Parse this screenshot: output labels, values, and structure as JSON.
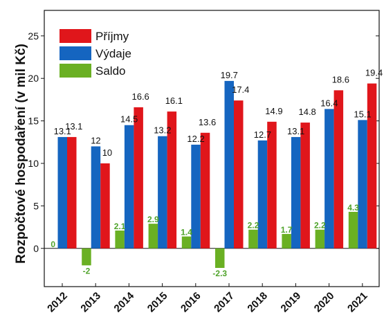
{
  "chart_data": {
    "type": "bar",
    "categories": [
      "2012",
      "2013",
      "2014",
      "2015",
      "2016",
      "2017",
      "2018",
      "2019",
      "2020",
      "2021"
    ],
    "series": [
      {
        "name": "Výdaje",
        "color": "#1565c0",
        "values": [
          13.1,
          12,
          14.5,
          13.2,
          12.2,
          19.7,
          12.7,
          13.1,
          16.4,
          15.1
        ]
      },
      {
        "name": "Příjmy",
        "color": "#e0161b",
        "values": [
          13.1,
          10,
          16.6,
          16.1,
          13.6,
          17.4,
          14.9,
          14.8,
          18.6,
          19.4
        ]
      },
      {
        "name": "Saldo",
        "color": "#6ab023",
        "values": [
          0,
          -2,
          2.1,
          2.9,
          1.4,
          -2.3,
          2.2,
          1.7,
          2.2,
          4.3
        ]
      }
    ],
    "legend_order": [
      "Příjmy",
      "Výdaje",
      "Saldo"
    ],
    "legend_position": "top-left",
    "ylabel": "Rozpočtové hospodaření (v mil Kč)",
    "xlabel": "",
    "title": "",
    "ylim": [
      -4.5,
      28
    ],
    "yticks": [
      0,
      5,
      10,
      15,
      20,
      25
    ],
    "saldo_label_color": "#4fa32a",
    "grid": false
  }
}
